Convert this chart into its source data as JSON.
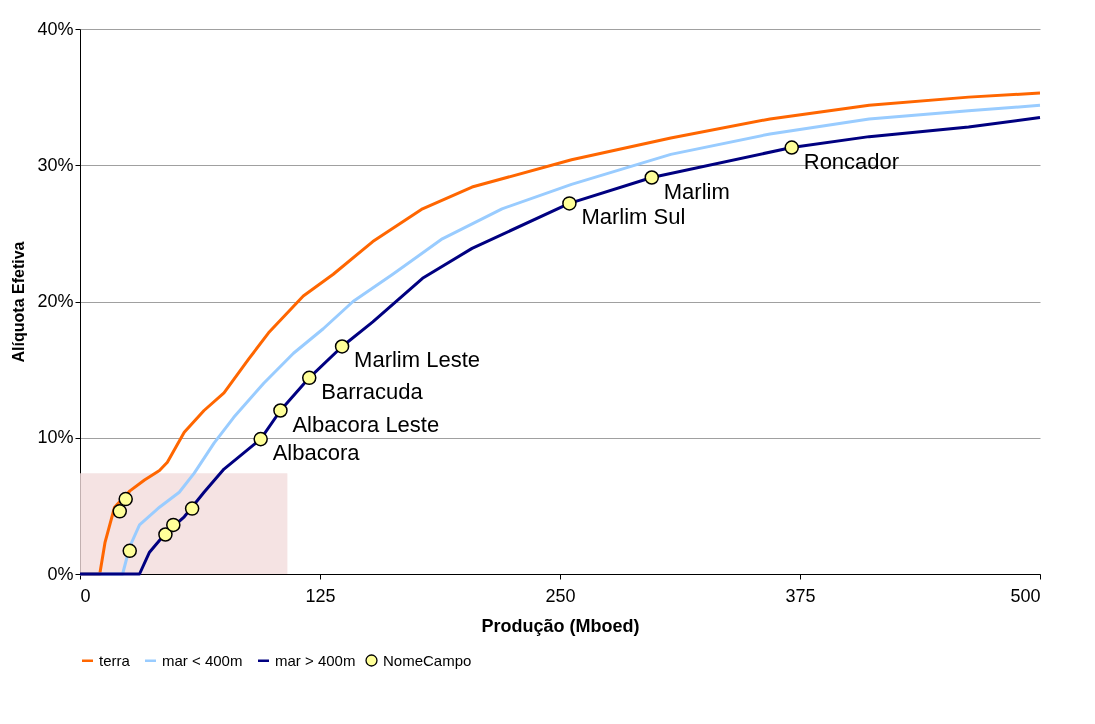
{
  "chart_data": {
    "type": "line",
    "xlabel": "Produção (Mboed)",
    "ylabel": "Alíquota Efetiva",
    "xlim": [
      0,
      500
    ],
    "xticks": [
      0,
      125,
      250,
      375,
      500
    ],
    "ylim": [
      0,
      40
    ],
    "yticks": [
      {
        "value": 0,
        "label": "0%"
      },
      {
        "value": 10,
        "label": "10%"
      },
      {
        "value": 20,
        "label": "20%"
      },
      {
        "value": 30,
        "label": "30%"
      },
      {
        "value": 40,
        "label": "40%"
      }
    ],
    "grid": "y",
    "legend": "bottom",
    "line_style": "solid",
    "series": [
      {
        "type": "area",
        "color": "#f3dcdc",
        "x": [
          0,
          108
        ],
        "values": [
          7.4,
          7.4
        ]
      },
      {
        "name": "terra",
        "color": "#ff6600",
        "x": [
          0,
          10.3,
          13,
          18,
          26,
          33.6,
          41.4,
          45.5,
          54.3,
          64.6,
          75,
          88,
          98.2,
          116.3,
          131.9,
          152.5,
          178.4,
          204.2,
          256,
          307.7,
          359.4,
          411,
          462.8,
          500
        ],
        "values": [
          0,
          0,
          2.3,
          4.9,
          6.1,
          6.9,
          7.6,
          8.2,
          10.4,
          12.0,
          13.3,
          15.8,
          17.7,
          20.4,
          22.0,
          24.4,
          26.8,
          28.4,
          30.4,
          32.0,
          33.4,
          34.4,
          35.0,
          35.3
        ]
      },
      {
        "name": "mar < 400m",
        "color": "#99ccff",
        "x": [
          0,
          22.2,
          25.9,
          31,
          41.4,
          51.7,
          59.5,
          69.8,
          80.1,
          95.7,
          111.2,
          126.7,
          142.2,
          162.9,
          188.7,
          219.8,
          256,
          307.7,
          359.4,
          411,
          462.8,
          500
        ],
        "values": [
          0,
          0,
          2.0,
          3.6,
          4.9,
          6.0,
          7.4,
          9.6,
          11.5,
          14.0,
          16.2,
          18.0,
          20.0,
          22.0,
          24.6,
          26.8,
          28.6,
          30.8,
          32.3,
          33.4,
          34.0,
          34.4
        ]
      },
      {
        "name": "mar > 400m",
        "color": "#000080",
        "x": [
          0,
          31,
          36.2,
          44,
          54.3,
          64.6,
          75,
          94.1,
          104.4,
          119.4,
          136.5,
          152.5,
          178.4,
          204.2,
          254.9,
          297.8,
          370.7,
          411,
          462.8,
          500
        ],
        "values": [
          0,
          0,
          1.6,
          2.9,
          4.2,
          6.0,
          7.7,
          9.9,
          12.0,
          14.4,
          16.7,
          18.5,
          21.7,
          23.9,
          27.2,
          29.1,
          31.3,
          32.1,
          32.8,
          33.5
        ]
      },
      {
        "name": "NomeCampo",
        "type": "scatter",
        "marker": "circle",
        "color": "#ffff99",
        "x": [
          20.7,
          23.8,
          25.9,
          44.5,
          48.6,
          58.4,
          94.1,
          104.4,
          119.4,
          136.5,
          254.9,
          297.8,
          370.7
        ],
        "values": [
          4.6,
          5.5,
          1.7,
          2.9,
          3.6,
          4.8,
          9.9,
          12.0,
          14.4,
          16.7,
          27.2,
          29.1,
          31.3
        ]
      }
    ],
    "annotations": [
      {
        "text": "Albacora",
        "x": 94.1,
        "y": 9.9
      },
      {
        "text": "Albacora Leste",
        "x": 104.4,
        "y": 12.0
      },
      {
        "text": "Barracuda",
        "x": 119.4,
        "y": 14.4
      },
      {
        "text": "Marlim Leste",
        "x": 136.5,
        "y": 16.7
      },
      {
        "text": "Marlim Sul",
        "x": 254.9,
        "y": 27.2
      },
      {
        "text": "Marlim",
        "x": 297.8,
        "y": 29.1
      },
      {
        "text": "Roncador",
        "x": 370.7,
        "y": 31.3
      }
    ]
  }
}
